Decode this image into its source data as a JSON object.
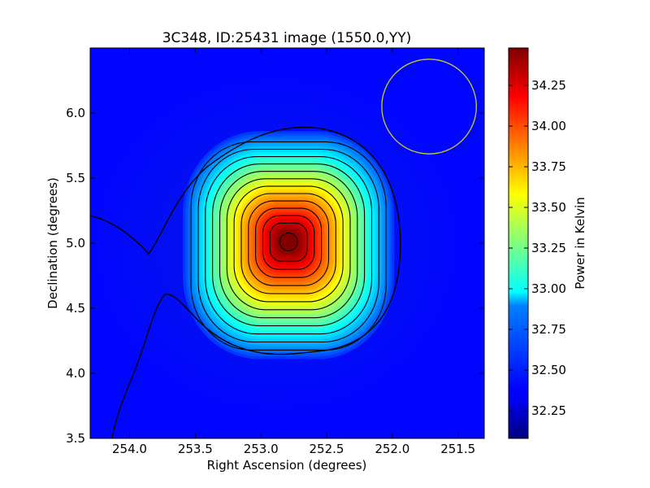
{
  "chart_data": {
    "type": "heatmap",
    "title": "3C348, ID:25431 image (1550.0,YY)",
    "xlabel": "Right Ascension (degrees)",
    "ylabel": "Declination (degrees)",
    "x_reversed": true,
    "xlim": [
      254.3,
      251.3
    ],
    "ylim": [
      3.5,
      6.5
    ],
    "x_ticks": [
      {
        "value": 254.0,
        "label": "254.0"
      },
      {
        "value": 253.5,
        "label": "253.5"
      },
      {
        "value": 253.0,
        "label": "253.0"
      },
      {
        "value": 252.5,
        "label": "252.5"
      },
      {
        "value": 252.0,
        "label": "252.0"
      },
      {
        "value": 251.5,
        "label": "251.5"
      }
    ],
    "y_ticks": [
      {
        "value": 3.5,
        "label": "3.5"
      },
      {
        "value": 4.0,
        "label": "4.0"
      },
      {
        "value": 4.5,
        "label": "4.5"
      },
      {
        "value": 5.0,
        "label": "5.0"
      },
      {
        "value": 5.5,
        "label": "5.5"
      },
      {
        "value": 6.0,
        "label": "6.0"
      }
    ],
    "source_peak": {
      "ra": 252.79,
      "dec": 5.01
    },
    "beam_circle": {
      "ra": 251.72,
      "dec": 6.05,
      "radius_deg": 0.36,
      "color": "#cccc33"
    },
    "colorbar": {
      "label": "Power in Kelvin",
      "colormap": "jet",
      "range": [
        32.08,
        34.48
      ],
      "ticks": [
        {
          "value": 32.25,
          "label": "32.25"
        },
        {
          "value": 32.5,
          "label": "32.50"
        },
        {
          "value": 32.75,
          "label": "32.75"
        },
        {
          "value": 33.0,
          "label": "33.00"
        },
        {
          "value": 33.25,
          "label": "33.25"
        },
        {
          "value": 33.5,
          "label": "33.50"
        },
        {
          "value": 33.75,
          "label": "33.75"
        },
        {
          "value": 34.0,
          "label": "34.00"
        },
        {
          "value": 34.25,
          "label": "34.25"
        }
      ]
    },
    "contour_color": "#000000"
  }
}
